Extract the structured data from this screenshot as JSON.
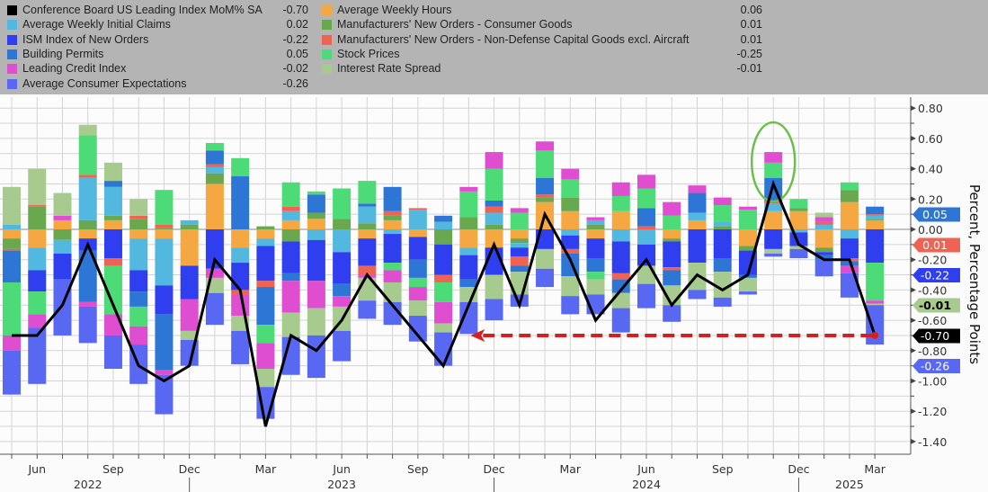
{
  "legend": {
    "left": [
      {
        "key": "lei",
        "label": "Conference Board US Leading Index MoM% SA",
        "value": "-0.70",
        "color": "#000000"
      },
      {
        "key": "claims",
        "label": "Average Weekly Initial Claims",
        "value": "0.02",
        "color": "#52b8e0"
      },
      {
        "key": "ism",
        "label": "ISM Index of New Orders",
        "value": "-0.22",
        "color": "#2f3ff0"
      },
      {
        "key": "permits",
        "label": "Building Permits",
        "value": "0.05",
        "color": "#2e76d6"
      },
      {
        "key": "credit",
        "label": "Leading Credit Index",
        "value": "-0.02",
        "color": "#df4ed0"
      },
      {
        "key": "expect",
        "label": "Average Consumer Expectations",
        "value": "-0.26",
        "color": "#5868f3"
      }
    ],
    "right": [
      {
        "key": "hours",
        "label": "Average Weekly Hours",
        "value": "0.06",
        "color": "#f5a742"
      },
      {
        "key": "consg",
        "label": "Manufacturers' New Orders - Consumer Goods",
        "value": "0.01",
        "color": "#6aa84f"
      },
      {
        "key": "capital",
        "label": "Manufacturers' New Orders - Non-Defense Capital Goods excl. Aircraft",
        "value": "0.01",
        "color": "#ee6352"
      },
      {
        "key": "stock",
        "label": "Stock Prices",
        "value": "-0.25",
        "color": "#4ddb78"
      },
      {
        "key": "spread",
        "label": "Interest Rate Spread",
        "value": "-0.01",
        "color": "#a7ca8f"
      }
    ]
  },
  "chart_data": {
    "type": "bar",
    "stacked": true,
    "ylabel": "Percent, Percentage Points",
    "ylim": [
      -1.5,
      0.9
    ],
    "y_ticks": [
      "0.80",
      "0.60",
      "0.40",
      "0.20",
      "0.00",
      "-0.20",
      "-0.40",
      "-0.60",
      "-0.80",
      "-1.00",
      "-1.20",
      "-1.40"
    ],
    "grid": true,
    "x_month_labels": [
      {
        "month": "Jun 2022",
        "label": "Jun"
      },
      {
        "month": "Sep 2022",
        "label": "Sep"
      },
      {
        "month": "Dec 2022",
        "label": "Dec"
      },
      {
        "month": "Mar 2023",
        "label": "Mar"
      },
      {
        "month": "Jun 2023",
        "label": "Jun"
      },
      {
        "month": "Sep 2023",
        "label": "Sep"
      },
      {
        "month": "Dec 2023",
        "label": "Dec"
      },
      {
        "month": "Mar 2024",
        "label": "Mar"
      },
      {
        "month": "Jun 2024",
        "label": "Jun"
      },
      {
        "month": "Sep 2024",
        "label": "Sep"
      },
      {
        "month": "Dec 2024",
        "label": "Dec"
      },
      {
        "month": "Mar 2025",
        "label": "Mar"
      }
    ],
    "x_year_labels": [
      {
        "month": "Aug 2022",
        "label": "2022"
      },
      {
        "month": "Jun 2023",
        "label": "2023"
      },
      {
        "month": "Jun 2024",
        "label": "2024"
      },
      {
        "month": "Feb 2025",
        "label": "2025"
      }
    ],
    "categories": [
      "May 2022",
      "Jun 2022",
      "Jul 2022",
      "Aug 2022",
      "Sep 2022",
      "Oct 2022",
      "Nov 2022",
      "Dec 2022",
      "Jan 2023",
      "Feb 2023",
      "Mar 2023",
      "Apr 2023",
      "May 2023",
      "Jun 2023",
      "Jul 2023",
      "Aug 2023",
      "Sep 2023",
      "Oct 2023",
      "Nov 2023",
      "Dec 2023",
      "Jan 2024",
      "Feb 2024",
      "Mar 2024",
      "Apr 2024",
      "May 2024",
      "Jun 2024",
      "Jul 2024",
      "Aug 2024",
      "Sep 2024",
      "Oct 2024",
      "Nov 2024",
      "Dec 2024",
      "Jan 2025",
      "Feb 2025",
      "Mar 2025"
    ],
    "components": [
      {
        "key": "hours",
        "name": "Average Weekly Hours",
        "color": "#f5a742"
      },
      {
        "key": "consg",
        "name": "Manufacturers' New Orders - Consumer Goods",
        "color": "#6aa84f"
      },
      {
        "key": "claims",
        "name": "Average Weekly Initial Claims",
        "color": "#52b8e0"
      },
      {
        "key": "ism",
        "name": "ISM Index of New Orders",
        "color": "#2f3ff0"
      },
      {
        "key": "capital",
        "name": "Manufacturers' New Orders - Non-Defense Capital Goods excl. Aircraft",
        "color": "#ee6352"
      },
      {
        "key": "permits",
        "name": "Building Permits",
        "color": "#2e76d6"
      },
      {
        "key": "stock",
        "name": "Stock Prices",
        "color": "#4ddb78"
      },
      {
        "key": "credit",
        "name": "Leading Credit Index",
        "color": "#df4ed0"
      },
      {
        "key": "spread",
        "name": "Interest Rate Spread",
        "color": "#a7ca8f"
      },
      {
        "key": "expect",
        "name": "Average Consumer Expectations",
        "color": "#5868f3"
      }
    ],
    "stacks": [
      [
        -0.06,
        -0.07,
        0.03,
        0,
        -0.01,
        -0.21,
        -0.35,
        -0.1,
        0.25,
        -0.29
      ],
      [
        -0.12,
        0.15,
        -0.15,
        -0.14,
        0.01,
        0,
        -0.15,
        -0.09,
        0.24,
        -0.37
      ],
      [
        0.06,
        -0.07,
        -0.09,
        -0.17,
        0,
        0,
        0,
        0.03,
        0.15,
        -0.37
      ],
      [
        -0.06,
        0.06,
        0.28,
        -0.08,
        0.02,
        -0.34,
        0.26,
        -0.03,
        0.07,
        -0.24
      ],
      [
        0.06,
        0.03,
        0.19,
        -0.19,
        -0.05,
        0.04,
        -0.32,
        -0.14,
        0.12,
        -0.22
      ],
      [
        -0.06,
        0.07,
        -0.21,
        -0.14,
        0.02,
        -0.1,
        -0.13,
        -0.12,
        0.11,
        -0.26
      ],
      [
        -0.06,
        0.01,
        -0.31,
        -0.19,
        0.02,
        -0.37,
        0.23,
        -0.03,
        0,
        -0.26
      ],
      [
        -0.24,
        0.03,
        0.03,
        -0.22,
        0,
        0,
        0,
        -0.21,
        -0.06,
        -0.17
      ],
      [
        0.3,
        0.07,
        0.04,
        -0.26,
        0.02,
        0.09,
        0.05,
        -0.06,
        -0.1,
        -0.21
      ],
      [
        -0.12,
        0,
        -0.1,
        -0.18,
        -0.03,
        0.35,
        0.12,
        -0.14,
        -0.1,
        -0.22
      ],
      [
        -0.06,
        0.02,
        -0.05,
        -0.23,
        -0.04,
        -0.25,
        -0.12,
        -0.17,
        -0.12,
        -0.21
      ],
      [
        0.06,
        -0.08,
        0.06,
        -0.21,
        0.03,
        -0.05,
        0.16,
        -0.21,
        -0.16,
        -0.25
      ],
      [
        0.07,
        0.04,
        -0.07,
        -0.27,
        0,
        0.12,
        0.02,
        -0.18,
        -0.18,
        -0.28
      ],
      [
        0,
        0.07,
        -0.15,
        -0.21,
        0,
        -0.08,
        0.2,
        -0.07,
        -0.16,
        -0.2
      ],
      [
        -0.06,
        0.04,
        0.11,
        -0.18,
        -0.06,
        0.02,
        0.15,
        -0.02,
        -0.15,
        -0.12
      ],
      [
        0.06,
        0.03,
        -0.03,
        -0.19,
        0.03,
        0.16,
        -0.05,
        -0.08,
        -0.13,
        -0.15
      ],
      [
        -0.05,
        0,
        0.13,
        -0.15,
        0.01,
        -0.12,
        -0.06,
        -0.09,
        -0.1,
        -0.17
      ],
      [
        0,
        -0.1,
        0.05,
        -0.2,
        -0.05,
        0.04,
        -0.13,
        -0.14,
        -0.06,
        -0.22
      ],
      [
        -0.12,
        0.08,
        -0.05,
        -0.16,
        0,
        -0.05,
        0.17,
        0.03,
        -0.1,
        -0.21
      ],
      [
        -0.12,
        0.03,
        0.08,
        -0.18,
        0.04,
        0.04,
        0.21,
        0.11,
        -0.16,
        -0.14
      ],
      [
        -0.06,
        -0.03,
        -0.03,
        -0.06,
        -0.06,
        -0.04,
        0.11,
        0.03,
        -0.15,
        -0.08
      ],
      [
        0.18,
        0.03,
        0,
        -0.13,
        0.02,
        0.11,
        0.18,
        0.06,
        -0.13,
        -0.12
      ],
      [
        0.12,
        0.09,
        -0.04,
        -0.09,
        -0.03,
        -0.15,
        0.12,
        0.07,
        -0.13,
        -0.12
      ],
      [
        -0.06,
        0.03,
        0.03,
        -0.13,
        0,
        -0.09,
        -0.05,
        0.02,
        -0.1,
        -0.13
      ],
      [
        0.12,
        0,
        -0.08,
        -0.21,
        -0.04,
        -0.09,
        0.1,
        0.09,
        -0.1,
        -0.16
      ],
      [
        0,
        0,
        -0.1,
        -0.14,
        0.02,
        0.12,
        0.13,
        0.09,
        -0.12,
        -0.16
      ],
      [
        -0.06,
        -0.02,
        0,
        -0.17,
        -0.02,
        -0.1,
        0.09,
        0.09,
        -0.13,
        -0.11
      ],
      [
        0.06,
        0,
        0.05,
        -0.22,
        0,
        0.13,
        0,
        0.05,
        -0.18,
        -0.06
      ],
      [
        0,
        0.02,
        0.03,
        -0.19,
        0,
        -0.09,
        0.11,
        0.05,
        -0.17,
        -0.06
      ],
      [
        -0.11,
        -0.03,
        0,
        -0.16,
        0,
        -0.02,
        0.13,
        0.02,
        -0.09,
        -0.02
      ],
      [
        0.12,
        0,
        0.05,
        -0.13,
        0.02,
        0.15,
        0.1,
        0.07,
        -0.03,
        -0.02
      ],
      [
        0.12,
        0.02,
        -0.02,
        -0.09,
        0,
        0,
        0.06,
        0,
        -0.02,
        -0.06
      ],
      [
        -0.12,
        -0.03,
        0.03,
        -0.02,
        0.02,
        -0.03,
        0,
        0.03,
        0.03,
        -0.11
      ],
      [
        0.18,
        0.08,
        -0.06,
        -0.13,
        -0.02,
        -0.03,
        0.05,
        -0.05,
        0,
        -0.16
      ],
      [
        0.06,
        0.01,
        0.02,
        -0.22,
        0.01,
        0.05,
        -0.25,
        -0.02,
        -0.01,
        -0.26
      ]
    ],
    "line": {
      "name": "Conference Board US Leading Index MoM% SA",
      "color": "#000000",
      "values": [
        -0.7,
        -0.7,
        -0.5,
        -0.1,
        -0.5,
        -0.9,
        -1.0,
        -0.9,
        -0.2,
        -0.4,
        -1.3,
        -0.7,
        -0.8,
        -0.6,
        -0.3,
        -0.5,
        -0.7,
        -0.9,
        -0.5,
        -0.1,
        -0.5,
        0.1,
        -0.2,
        -0.6,
        -0.4,
        -0.2,
        -0.5,
        -0.3,
        -0.4,
        -0.3,
        0.3,
        -0.1,
        -0.2,
        -0.2,
        -0.7
      ]
    },
    "last_value_tags": [
      {
        "text": "0.05",
        "color": "#2e76d6",
        "text_color": "#ffffff"
      },
      {
        "text": "0.01",
        "color": "#ee6352",
        "text_color": "#ffffff"
      },
      {
        "text": "-0.22",
        "color": "#2f3ff0",
        "text_color": "#ffffff"
      },
      {
        "text": "-0.01",
        "color": "#a7ca8f",
        "text_color": "#000000"
      },
      {
        "text": "-0.26",
        "color": "#5868f3",
        "text_color": "#ffffff"
      },
      {
        "text": "-0.70",
        "color": "#000000",
        "text_color": "#ffffff"
      }
    ],
    "annotations": {
      "highlight_circle_month": "Nov 2024",
      "circle_color": "#6cbf4a",
      "dashed_arrow": {
        "from": "Mar 2025",
        "to": "Nov 2023",
        "level": -0.7,
        "color": "#d42020"
      }
    }
  }
}
